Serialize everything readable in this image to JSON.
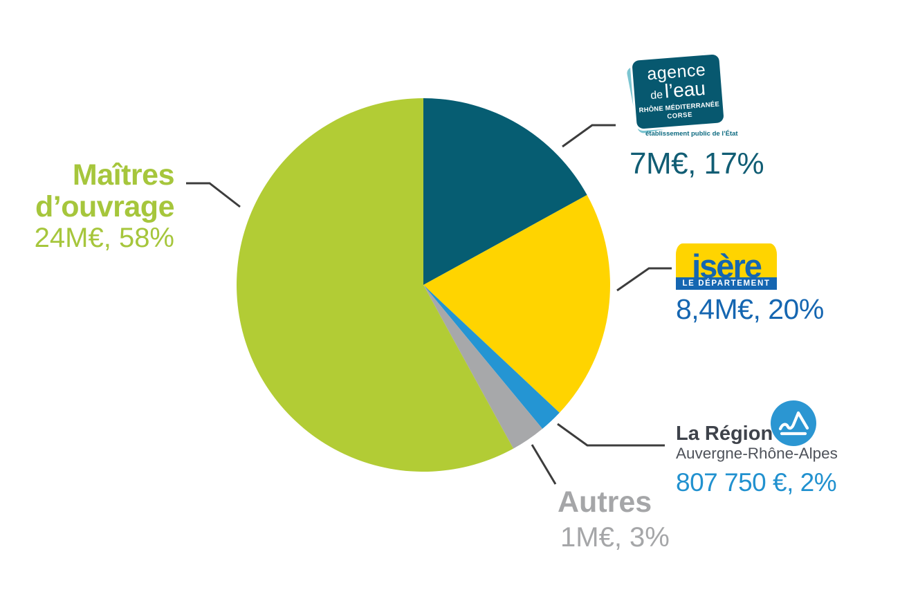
{
  "chart_data": {
    "type": "pie",
    "title": "",
    "direction": "clockwise",
    "start_angle_deg": 0,
    "legend_position": "callout-labels",
    "categories": [
      "Agence de l'eau Rhône Méditerranée Corse",
      "Isère Le Département",
      "La Région Auvergne-Rhône-Alpes",
      "Autres",
      "Maîtres d'ouvrage"
    ],
    "values": [
      17,
      20,
      2,
      3,
      58
    ],
    "slices": [
      {
        "id": "agence-de-leau",
        "label": "Agence de l'eau Rhône Méditerranée Corse",
        "amount": "7M€",
        "percent": 17,
        "value_label": "7M€, 17%",
        "color": "#065d72",
        "label_color": "#115d74"
      },
      {
        "id": "isere",
        "label": "Isère Le Département",
        "amount": "8,4M€",
        "percent": 20,
        "value_label": "8,4M€, 20%",
        "color": "#ffd400",
        "label_color": "#1566b1"
      },
      {
        "id": "region-auvergne-rhone-alpes",
        "label": "La Région Auvergne-Rhône-Alpes",
        "amount": "807 750 €",
        "percent": 2,
        "value_label": "807 750 €, 2%",
        "color": "#2495d3",
        "label_color": "#2191cf"
      },
      {
        "id": "autres",
        "label": "Autres",
        "amount": "1M€",
        "percent": 3,
        "value_label": "1M€, 3%",
        "color": "#a7a8aa",
        "label_color": "#a5a6a8"
      },
      {
        "id": "maitres-douvrage",
        "label": "Maîtres d'ouvrage",
        "label_lines": [
          "Maîtres",
          "d’ouvrage"
        ],
        "amount": "24M€",
        "percent": 58,
        "value_label": "24M€, 58%",
        "color": "#b2cc35",
        "label_color": "#a6c63c"
      }
    ]
  },
  "logos": {
    "agence_eau": {
      "line1": "agence",
      "line2_prefix": "de",
      "line2_main": "l’eau",
      "line3": "RHÔNE MÉDITERRANÉE",
      "line4": "CORSE",
      "footer": "établissement public de l’État",
      "bg_color": "#07586f",
      "accent_color": "#7cc5d1"
    },
    "isere": {
      "name": "isère",
      "tagline": "LE DÉPARTEMENT",
      "bg_color": "#ffd400",
      "text_color": "#1566b1"
    },
    "region": {
      "name": "La Région",
      "subtitle": "Auvergne-Rhône-Alpes",
      "icon": "mountain-icon",
      "icon_color": "#2b96d2",
      "name_color": "#3e424a",
      "subtitle_color": "#4e525a"
    }
  }
}
